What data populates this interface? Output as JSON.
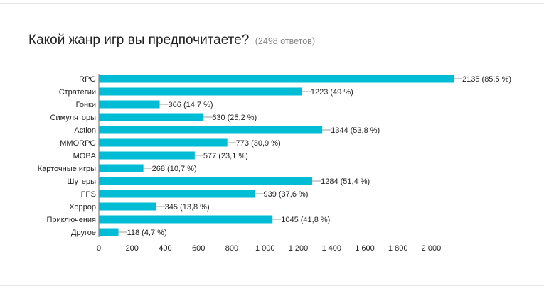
{
  "question": {
    "title": "Какой жанр игр вы предпочитаете?",
    "response_count": "(2498 ответов)"
  },
  "colors": {
    "bar": "#00bcd4",
    "leader": "#9e9e9e",
    "axis": "#666666"
  },
  "chart_data": {
    "type": "bar",
    "orientation": "horizontal",
    "categories": [
      "RPG",
      "Стратегии",
      "Гонки",
      "Симуляторы",
      "Action",
      "MMORPG",
      "MOBA",
      "Карточные игры",
      "Шутеры",
      "FPS",
      "Хоррор",
      "Приключения",
      "Другое"
    ],
    "values": [
      2135,
      1223,
      366,
      630,
      1344,
      773,
      577,
      268,
      1284,
      939,
      345,
      1045,
      118
    ],
    "data_labels": [
      "2135 (85,5 %)",
      "1223 (49 %)",
      "366 (14,7 %)",
      "630 (25,2 %)",
      "1344 (53,8 %)",
      "773 (30,9 %)",
      "577 (23,1 %)",
      "268 (10,7 %)",
      "1284 (51,4 %)",
      "939 (37,6 %)",
      "345 (13,8 %)",
      "1045 (41,8 %)",
      "118 (4,7 %)"
    ],
    "xlim": [
      0,
      2135
    ],
    "x_ticks": [
      0,
      200,
      400,
      600,
      800,
      1000,
      1200,
      1400,
      1600,
      1800,
      2000
    ],
    "x_tick_labels": [
      "0",
      "200",
      "400",
      "600",
      "800",
      "1 000",
      "1 200",
      "1 400",
      "1 600",
      "1 800",
      "2 000"
    ],
    "grid": false,
    "legend": "none"
  }
}
